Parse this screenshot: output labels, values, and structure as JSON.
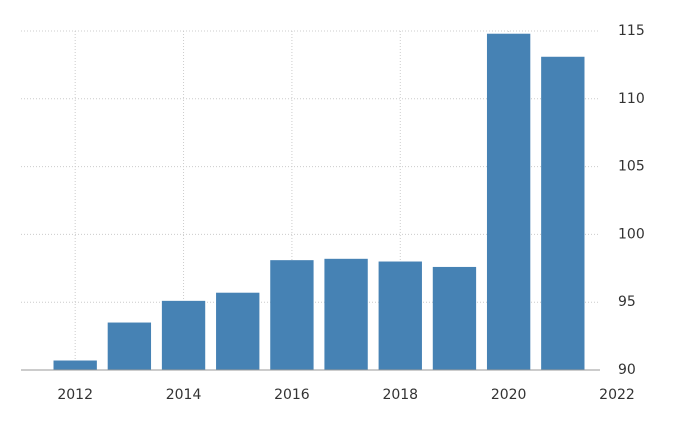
{
  "chart_data": {
    "type": "bar",
    "x": [
      2012,
      2013,
      2014,
      2015,
      2016,
      2017,
      2018,
      2019,
      2020,
      2021
    ],
    "values": [
      90.7,
      93.5,
      95.1,
      95.7,
      98.1,
      98.2,
      98.0,
      97.6,
      114.8,
      113.1
    ],
    "color": "#4682b4",
    "xlim": [
      2011,
      2022
    ],
    "xticks": [
      2012,
      2014,
      2016,
      2018,
      2020,
      2022
    ],
    "ylim": [
      90,
      115
    ],
    "yticks": [
      90,
      95,
      100,
      105,
      110,
      115
    ],
    "grid": true
  }
}
